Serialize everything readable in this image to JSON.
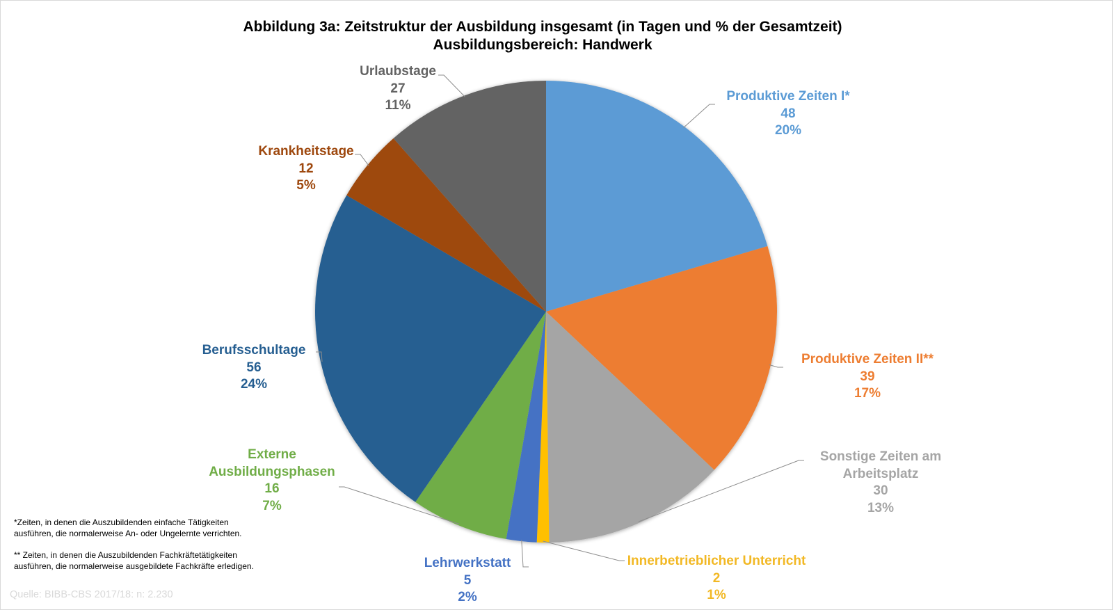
{
  "chart_data": {
    "type": "pie",
    "title": "Abbildung 3a: Zeitstruktur der Ausbildung insgesamt (in Tagen und % der Gesamtzeit)",
    "subtitle": "Ausbildungsbereich: Handwerk",
    "start_angle": "12 o'clock, clockwise",
    "unit": "Tage",
    "slices": [
      {
        "label": "Produktive Zeiten I*",
        "value": 48,
        "percent": "20%",
        "color": "#5B9BD5",
        "text_color": "#5B9BD5"
      },
      {
        "label": "Produktive Zeiten II**",
        "value": 39,
        "percent": "17%",
        "color": "#ED7D31",
        "text_color": "#ED7D31"
      },
      {
        "label": "Sonstige Zeiten am Arbeitsplatz",
        "label_lines": [
          "Sonstige Zeiten am",
          "Arbeitsplatz"
        ],
        "value": 30,
        "percent": "13%",
        "color": "#A5A5A5",
        "text_color": "#A5A5A5"
      },
      {
        "label": "Innerbetrieblicher Unterricht",
        "value": 2,
        "percent": "1%",
        "color": "#FFC000",
        "text_color": "#F2B824"
      },
      {
        "label": "Lehrwerkstatt",
        "value": 5,
        "percent": "2%",
        "color": "#4472C4",
        "text_color": "#4472C4"
      },
      {
        "label": "Externe Ausbildungsphasen",
        "label_lines": [
          "Externe",
          "Ausbildungsphasen"
        ],
        "value": 16,
        "percent": "7%",
        "color": "#70AD47",
        "text_color": "#70AD47"
      },
      {
        "label": "Berufsschultage",
        "value": 56,
        "percent": "24%",
        "color": "#255E91",
        "text_color": "#255E91"
      },
      {
        "label": "Krankheitstage",
        "value": 12,
        "percent": "5%",
        "color": "#9E480E",
        "text_color": "#9E480E"
      },
      {
        "label": "Urlaubstage",
        "value": 27,
        "percent": "11%",
        "color": "#636363",
        "text_color": "#636363"
      }
    ],
    "legend": "none (data labels with leader lines)"
  },
  "footnotes": {
    "note1_line1": "*Zeiten, in denen die Auszubildenden  einfache Tätigkeiten",
    "note1_line2": "ausführen, die normalerweise An- oder Ungelernte verrichten.",
    "note2_line1": "** Zeiten, in denen die Auszubildenden  Fachkräftetätigkeiten",
    "note2_line2": "ausführen, die normalerweise ausgebildete Fachkräfte erledigen."
  },
  "source": "Quelle: BIBB-CBS 2017/18: n: 2.230"
}
